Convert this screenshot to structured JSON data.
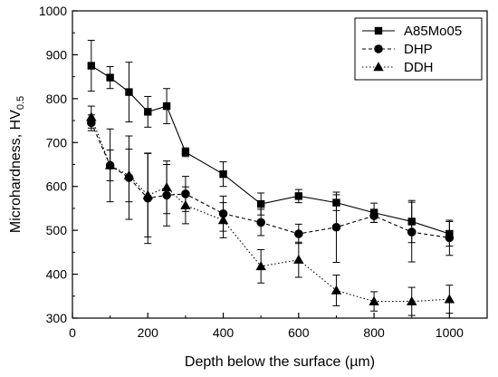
{
  "chart_data": {
    "type": "line",
    "title": "",
    "xlabel": "Depth below the surface (µm)",
    "ylabel_main": "Microhardness, HV",
    "ylabel_sub": "0.5",
    "xlim": [
      0,
      1100
    ],
    "ylim": [
      300,
      1000
    ],
    "x_ticks": [
      0,
      200,
      400,
      600,
      800,
      1000
    ],
    "y_ticks": [
      300,
      400,
      500,
      600,
      700,
      800,
      900,
      1000
    ],
    "grid": false,
    "legend_position": "top-right",
    "x": [
      50,
      100,
      150,
      200,
      250,
      300,
      400,
      500,
      600,
      700,
      800,
      900,
      1000
    ],
    "series": [
      {
        "name": "A85Mo05",
        "marker": "square",
        "line": "solid",
        "values": [
          875,
          848,
          815,
          770,
          783,
          678,
          628,
          560,
          578,
          563,
          540,
          520,
          492
        ],
        "errors": [
          58,
          25,
          68,
          35,
          40,
          10,
          28,
          25,
          15,
          18,
          22,
          48,
          28
        ]
      },
      {
        "name": "DHP",
        "marker": "circle",
        "line": "dashed",
        "values": [
          745,
          648,
          620,
          573,
          580,
          583,
          538,
          518,
          492,
          507,
          533,
          496,
          483
        ],
        "errors": [
          18,
          83,
          95,
          103,
          70,
          40,
          40,
          30,
          22,
          80,
          15,
          68,
          40
        ]
      },
      {
        "name": "DDH",
        "marker": "triangle",
        "line": "dotted",
        "values": [
          758,
          648,
          625,
          580,
          598,
          557,
          523,
          418,
          433,
          363,
          338,
          338,
          343
        ],
        "errors": [
          25,
          35,
          60,
          95,
          60,
          42,
          40,
          38,
          40,
          35,
          22,
          32,
          32
        ]
      }
    ]
  }
}
